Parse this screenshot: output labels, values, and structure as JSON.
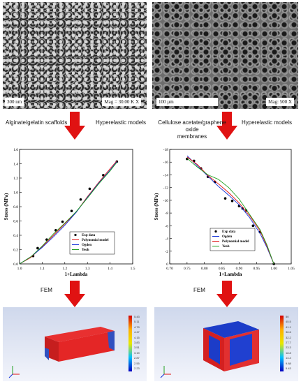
{
  "sem_left": {
    "scale_label": "300 nm",
    "mag_label": "Mag =   30.00 K X"
  },
  "sem_right": {
    "scale_label": "100 µm",
    "mag_label": "Mag: 500 X"
  },
  "left_captions": {
    "material": "Alginate/gelatin scaffolds",
    "models": "Hyperelastic models",
    "fem": "FEM"
  },
  "right_captions": {
    "material_line1": "Cellulose acetate/graphene oxide",
    "material_line2": "membranes",
    "models": "Hyperelastic models",
    "fem": "FEM"
  },
  "colors": {
    "arrow": "#e01212",
    "exp": "#000000",
    "polynomial": "#e01212",
    "ogden": "#1030d8",
    "yeoh": "#20a020"
  },
  "chart_data": [
    {
      "type": "line",
      "xlabel": "1+Lambda",
      "ylabel": "Stress (MPa)",
      "xlim": [
        1.0,
        1.5
      ],
      "ylim": [
        0.0,
        1.6
      ],
      "xticks": [
        "1.0",
        "1.1",
        "1.2",
        "1.3",
        "1.4",
        "1.5"
      ],
      "yticks": [
        "0.0",
        "0.2",
        "0.4",
        "0.6",
        "0.8",
        "1.0",
        "1.2",
        "1.4",
        "1.6"
      ],
      "legend_position": "bottom-right",
      "series": [
        {
          "name": "Exp data",
          "style": "points",
          "x": [
            1.06,
            1.08,
            1.12,
            1.16,
            1.19,
            1.23,
            1.27,
            1.31,
            1.37,
            1.43
          ],
          "y": [
            0.11,
            0.22,
            0.34,
            0.47,
            0.59,
            0.74,
            0.9,
            1.05,
            1.24,
            1.43
          ]
        },
        {
          "name": "Polynomial model",
          "style": "line",
          "x": [
            1.0,
            1.05,
            1.1,
            1.15,
            1.2,
            1.25,
            1.3,
            1.35,
            1.4,
            1.43
          ],
          "y": [
            0.0,
            0.09,
            0.24,
            0.4,
            0.56,
            0.72,
            0.94,
            1.14,
            1.33,
            1.44
          ]
        },
        {
          "name": "Ogden",
          "style": "line",
          "x": [
            1.0,
            1.05,
            1.1,
            1.15,
            1.2,
            1.25,
            1.3,
            1.35,
            1.4,
            1.43
          ],
          "y": [
            0.0,
            0.1,
            0.23,
            0.38,
            0.54,
            0.72,
            0.93,
            1.13,
            1.31,
            1.43
          ]
        },
        {
          "name": "Yeoh",
          "style": "line",
          "x": [
            1.0,
            1.05,
            1.1,
            1.15,
            1.2,
            1.25,
            1.3,
            1.35,
            1.4,
            1.43
          ],
          "y": [
            0.0,
            0.1,
            0.25,
            0.42,
            0.57,
            0.73,
            0.92,
            1.12,
            1.3,
            1.42
          ]
        }
      ]
    },
    {
      "type": "line",
      "xlabel": "1+Lambda",
      "ylabel": "Stress (MPa)",
      "xlim": [
        0.7,
        1.05
      ],
      "ylim": [
        0,
        -18
      ],
      "xticks": [
        "0.70",
        "0.75",
        "0.80",
        "0.85",
        "0.90",
        "0.95",
        "1.00",
        "1.05"
      ],
      "yticks": [
        "0",
        "-2",
        "-4",
        "-6",
        "-8",
        "-10",
        "-12",
        "-14",
        "-16",
        "-18"
      ],
      "legend_position": "bottom-left",
      "series": [
        {
          "name": "Exp data",
          "style": "points",
          "x": [
            0.75,
            0.77,
            0.79,
            0.81,
            0.83,
            0.86,
            0.88,
            0.9,
            0.91,
            0.92,
            0.94,
            0.96,
            1.0
          ],
          "y": [
            -16.5,
            -16.2,
            -15.0,
            -13.7,
            -12.9,
            -10.3,
            -9.9,
            -9.1,
            -8.7,
            -8.4,
            -6.0,
            -5.0,
            0.0
          ]
        },
        {
          "name": "Ogden",
          "style": "line",
          "x": [
            0.75,
            0.78,
            0.81,
            0.84,
            0.87,
            0.9,
            0.93,
            0.96,
            0.98,
            1.0
          ],
          "y": [
            -17.0,
            -15.4,
            -13.8,
            -12.2,
            -10.8,
            -9.3,
            -7.3,
            -4.8,
            -2.6,
            0.0
          ]
        },
        {
          "name": "Polynomial model",
          "style": "line",
          "x": [
            0.75,
            0.78,
            0.81,
            0.84,
            0.87,
            0.9,
            0.93,
            0.96,
            0.98,
            1.0
          ],
          "y": [
            -16.8,
            -15.6,
            -13.9,
            -12.6,
            -11.2,
            -9.6,
            -7.6,
            -5.2,
            -2.8,
            0.0
          ]
        },
        {
          "name": "Yeoh",
          "style": "line",
          "x": [
            0.75,
            0.78,
            0.81,
            0.84,
            0.87,
            0.9,
            0.93,
            0.96,
            0.98,
            1.0
          ],
          "y": [
            -16.6,
            -15.2,
            -14.0,
            -13.3,
            -12.0,
            -10.2,
            -7.8,
            -5.4,
            -3.0,
            0.0
          ]
        }
      ]
    }
  ],
  "fem_left": {
    "colorbar_labels": [
      "5.43",
      "5.11",
      "4.79",
      "4.47",
      "4.15",
      "3.83",
      "3.51",
      "3.19",
      "2.87",
      "2.55",
      "2.23"
    ]
  },
  "fem_right": {
    "colorbar_labels": [
      "50",
      "45.5",
      "41.1",
      "36.6",
      "32.2",
      "27.7",
      "23.3",
      "18.8",
      "14.4",
      "9.88",
      "5.43"
    ]
  }
}
